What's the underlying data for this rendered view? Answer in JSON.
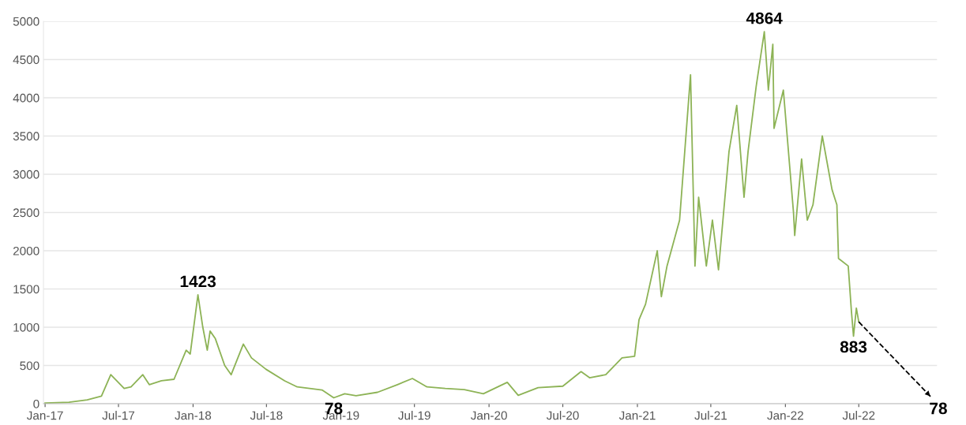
{
  "chart_data": {
    "type": "line",
    "xlim": [
      "2016-12-28",
      "2023-01-10"
    ],
    "ylim": [
      0,
      5000
    ],
    "yticks": [
      0,
      500,
      1000,
      1500,
      2000,
      2500,
      3000,
      3500,
      4000,
      4500,
      5000
    ],
    "xticks": [
      {
        "value": "2017-01-01",
        "label": "Jan-17"
      },
      {
        "value": "2017-07-01",
        "label": "Jul-17"
      },
      {
        "value": "2018-01-01",
        "label": "Jan-18"
      },
      {
        "value": "2018-07-01",
        "label": "Jul-18"
      },
      {
        "value": "2019-01-01",
        "label": "Jan-19"
      },
      {
        "value": "2019-07-01",
        "label": "Jul-19"
      },
      {
        "value": "2020-01-01",
        "label": "Jan-20"
      },
      {
        "value": "2020-07-01",
        "label": "Jul-20"
      },
      {
        "value": "2021-01-01",
        "label": "Jan-21"
      },
      {
        "value": "2021-07-01",
        "label": "Jul-21"
      },
      {
        "value": "2022-01-01",
        "label": "Jan-22"
      },
      {
        "value": "2022-07-01",
        "label": "Jul-22"
      }
    ],
    "grid": "y",
    "series": [
      {
        "color": "#8db356",
        "line_style": "solid",
        "x": [
          "2017-01-01",
          "2017-03-01",
          "2017-04-15",
          "2017-05-20",
          "2017-06-12",
          "2017-07-15",
          "2017-08-01",
          "2017-08-30",
          "2017-09-15",
          "2017-10-15",
          "2017-11-15",
          "2017-12-15",
          "2017-12-25",
          "2018-01-13",
          "2018-01-25",
          "2018-02-05",
          "2018-02-12",
          "2018-02-25",
          "2018-03-20",
          "2018-04-05",
          "2018-05-05",
          "2018-05-25",
          "2018-06-30",
          "2018-08-15",
          "2018-09-15",
          "2018-11-15",
          "2018-12-14",
          "2019-01-10",
          "2019-02-07",
          "2019-04-01",
          "2019-05-20",
          "2019-06-26",
          "2019-08-01",
          "2019-09-15",
          "2019-11-01",
          "2019-12-18",
          "2020-02-15",
          "2020-03-13",
          "2020-05-01",
          "2020-07-01",
          "2020-08-15",
          "2020-09-05",
          "2020-10-15",
          "2020-11-24",
          "2020-12-25",
          "2021-01-05",
          "2021-01-21",
          "2021-02-19",
          "2021-03-01",
          "2021-03-15",
          "2021-04-15",
          "2021-05-12",
          "2021-05-23",
          "2021-06-01",
          "2021-06-20",
          "2021-07-05",
          "2021-07-20",
          "2021-08-15",
          "2021-09-03",
          "2021-09-21",
          "2021-10-01",
          "2021-10-21",
          "2021-11-10",
          "2021-11-20",
          "2021-12-01",
          "2021-12-04",
          "2021-12-27",
          "2022-01-21",
          "2022-01-24",
          "2022-02-10",
          "2022-02-24",
          "2022-03-10",
          "2022-04-02",
          "2022-04-26",
          "2022-05-08",
          "2022-05-12",
          "2022-06-05",
          "2022-06-13",
          "2022-06-18",
          "2022-06-25",
          "2022-07-01"
        ],
        "values": [
          10,
          20,
          50,
          100,
          380,
          200,
          220,
          380,
          250,
          300,
          320,
          700,
          650,
          1423,
          1000,
          700,
          950,
          850,
          500,
          380,
          780,
          600,
          450,
          300,
          220,
          180,
          78,
          130,
          105,
          150,
          250,
          330,
          220,
          200,
          185,
          130,
          280,
          110,
          210,
          230,
          420,
          340,
          380,
          600,
          620,
          1100,
          1300,
          2000,
          1400,
          1800,
          2400,
          4300,
          1800,
          2700,
          1800,
          2400,
          1750,
          3300,
          3900,
          2700,
          3300,
          4150,
          4864,
          4100,
          4700,
          3600,
          4100,
          2500,
          2200,
          3200,
          2400,
          2600,
          3500,
          2800,
          2600,
          1900,
          1800,
          1200,
          883,
          1250,
          1070
        ]
      },
      {
        "color": "#000000",
        "line_style": "dashed",
        "x": [
          "2022-07-01",
          "2022-12-28"
        ],
        "values": [
          1070,
          78
        ]
      }
    ],
    "annotations": [
      {
        "text": "1423",
        "x": "2018-01-13",
        "y": 1423
      },
      {
        "text": "78",
        "x": "2018-12-14",
        "y": 78
      },
      {
        "text": "4864",
        "x": "2021-11-10",
        "y": 4864
      },
      {
        "text": "883",
        "x": "2022-06-18",
        "y": 883
      },
      {
        "text": "78",
        "x": "2022-12-28",
        "y": 78
      }
    ]
  }
}
